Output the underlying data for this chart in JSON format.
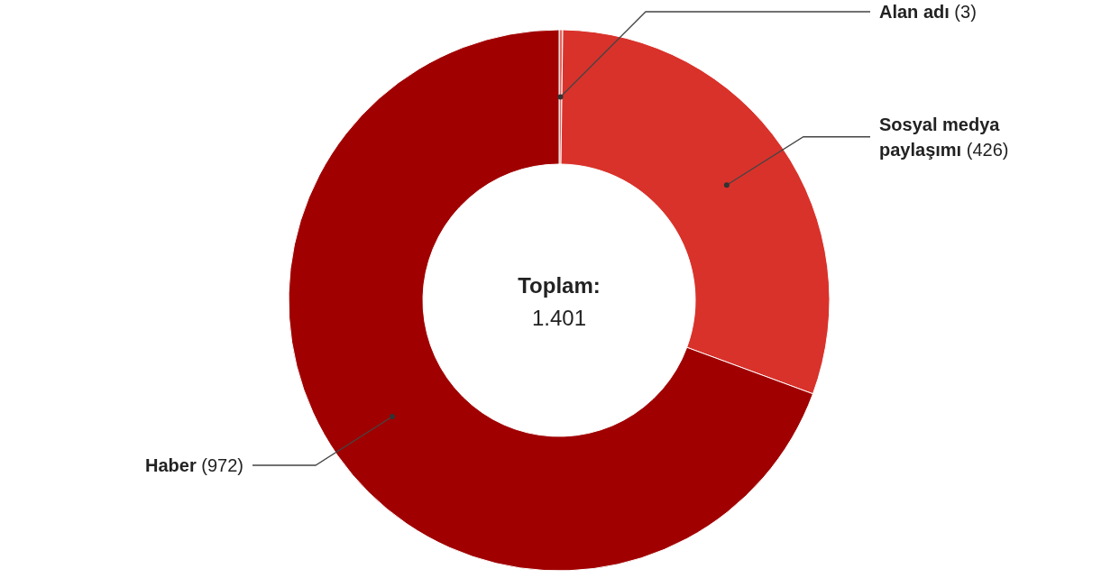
{
  "chart_data": {
    "type": "donut",
    "categories": [
      "Alan adı",
      "Sosyal medya paylaşımı",
      "Haber"
    ],
    "values": [
      3,
      426,
      972
    ],
    "value_labels": [
      "(3)",
      "(426)",
      "(972)"
    ],
    "colors": [
      "#e06660",
      "#d9322b",
      "#a10000"
    ],
    "annotations": [
      "Toplam:",
      "1.401"
    ]
  }
}
